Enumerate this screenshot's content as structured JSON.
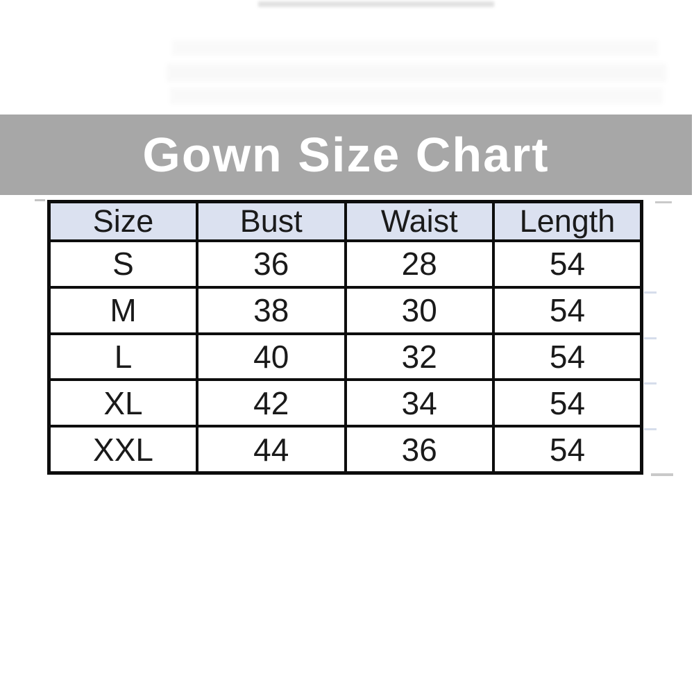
{
  "banner": {
    "title": "Gown Size Chart"
  },
  "colors": {
    "banner_bg": "#a7a7a7",
    "banner_text": "#ffffff",
    "header_bg": "#dbe1f0",
    "border": "#0d0d0d",
    "cell_text": "#1a1a1a",
    "page_bg": "#ffffff"
  },
  "table": {
    "columns": [
      "Size",
      "Bust",
      "Waist",
      "Length"
    ],
    "rows": [
      [
        "S",
        "36",
        "28",
        "54"
      ],
      [
        "M",
        "38",
        "30",
        "54"
      ],
      [
        "L",
        "40",
        "32",
        "54"
      ],
      [
        "XL",
        "42",
        "34",
        "54"
      ],
      [
        "XXL",
        "44",
        "36",
        "54"
      ]
    ]
  },
  "chart_data": {
    "type": "table",
    "title": "Gown Size Chart",
    "columns": [
      "Size",
      "Bust",
      "Waist",
      "Length"
    ],
    "rows": [
      {
        "Size": "S",
        "Bust": 36,
        "Waist": 28,
        "Length": 54
      },
      {
        "Size": "M",
        "Bust": 38,
        "Waist": 30,
        "Length": 54
      },
      {
        "Size": "L",
        "Bust": 40,
        "Waist": 32,
        "Length": 54
      },
      {
        "Size": "XL",
        "Bust": 42,
        "Waist": 34,
        "Length": 54
      },
      {
        "Size": "XXL",
        "Bust": 44,
        "Waist": 36,
        "Length": 54
      }
    ]
  }
}
